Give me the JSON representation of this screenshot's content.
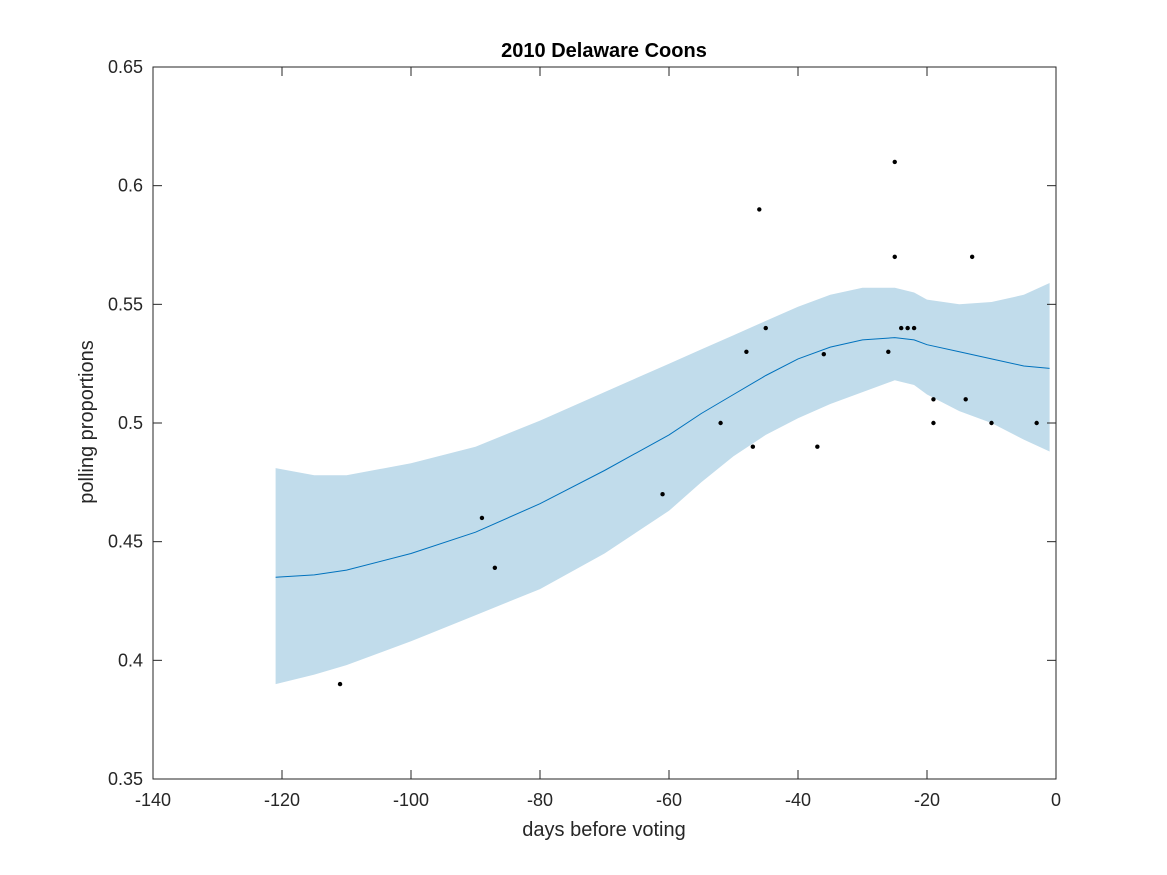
{
  "chart_data": {
    "type": "line",
    "title": "2010 Delaware Coons",
    "xlabel": "days before voting",
    "ylabel": "polling proportions",
    "xlim": [
      -140,
      0
    ],
    "ylim": [
      0.35,
      0.65
    ],
    "xticks": [
      -140,
      -120,
      -100,
      -80,
      -60,
      -40,
      -20,
      0
    ],
    "yticks": [
      0.35,
      0.4,
      0.45,
      0.5,
      0.55,
      0.6,
      0.65
    ],
    "xtick_labels": [
      "-140",
      "-120",
      "-100",
      "-80",
      "-60",
      "-40",
      "-20",
      "0"
    ],
    "ytick_labels": [
      "0.35",
      "0.4",
      "0.45",
      "0.5",
      "0.55",
      "0.6",
      "0.65"
    ],
    "grid": false,
    "colors": {
      "band": "#c1dceb",
      "line": "#0072bd",
      "points": "#000000",
      "axis": "#262626"
    },
    "fit": {
      "x": [
        -121,
        -115,
        -110,
        -100,
        -90,
        -80,
        -70,
        -60,
        -55,
        -50,
        -45,
        -40,
        -35,
        -30,
        -25,
        -22,
        -20,
        -15,
        -10,
        -5,
        -1
      ],
      "y": [
        0.435,
        0.436,
        0.438,
        0.445,
        0.454,
        0.466,
        0.48,
        0.495,
        0.504,
        0.512,
        0.52,
        0.527,
        0.532,
        0.535,
        0.536,
        0.535,
        0.533,
        0.53,
        0.527,
        0.524,
        0.523
      ],
      "upper": [
        0.481,
        0.478,
        0.478,
        0.483,
        0.49,
        0.501,
        0.513,
        0.525,
        0.531,
        0.537,
        0.543,
        0.549,
        0.554,
        0.557,
        0.557,
        0.555,
        0.552,
        0.55,
        0.551,
        0.554,
        0.559
      ],
      "lower": [
        0.39,
        0.394,
        0.398,
        0.408,
        0.419,
        0.43,
        0.445,
        0.463,
        0.475,
        0.486,
        0.495,
        0.502,
        0.508,
        0.513,
        0.518,
        0.516,
        0.512,
        0.505,
        0.5,
        0.493,
        0.488
      ]
    },
    "points": [
      {
        "x": -111,
        "y": 0.39
      },
      {
        "x": -89,
        "y": 0.46
      },
      {
        "x": -87,
        "y": 0.439
      },
      {
        "x": -61,
        "y": 0.47
      },
      {
        "x": -52,
        "y": 0.5
      },
      {
        "x": -48,
        "y": 0.53
      },
      {
        "x": -47,
        "y": 0.49
      },
      {
        "x": -46,
        "y": 0.59
      },
      {
        "x": -45,
        "y": 0.54
      },
      {
        "x": -37,
        "y": 0.49
      },
      {
        "x": -36,
        "y": 0.529
      },
      {
        "x": -26,
        "y": 0.53
      },
      {
        "x": -25,
        "y": 0.61
      },
      {
        "x": -25,
        "y": 0.57
      },
      {
        "x": -24,
        "y": 0.54
      },
      {
        "x": -23,
        "y": 0.54
      },
      {
        "x": -22,
        "y": 0.54
      },
      {
        "x": -19,
        "y": 0.51
      },
      {
        "x": -19,
        "y": 0.5
      },
      {
        "x": -14,
        "y": 0.51
      },
      {
        "x": -13,
        "y": 0.57
      },
      {
        "x": -10,
        "y": 0.5
      },
      {
        "x": -3,
        "y": 0.5
      }
    ]
  }
}
